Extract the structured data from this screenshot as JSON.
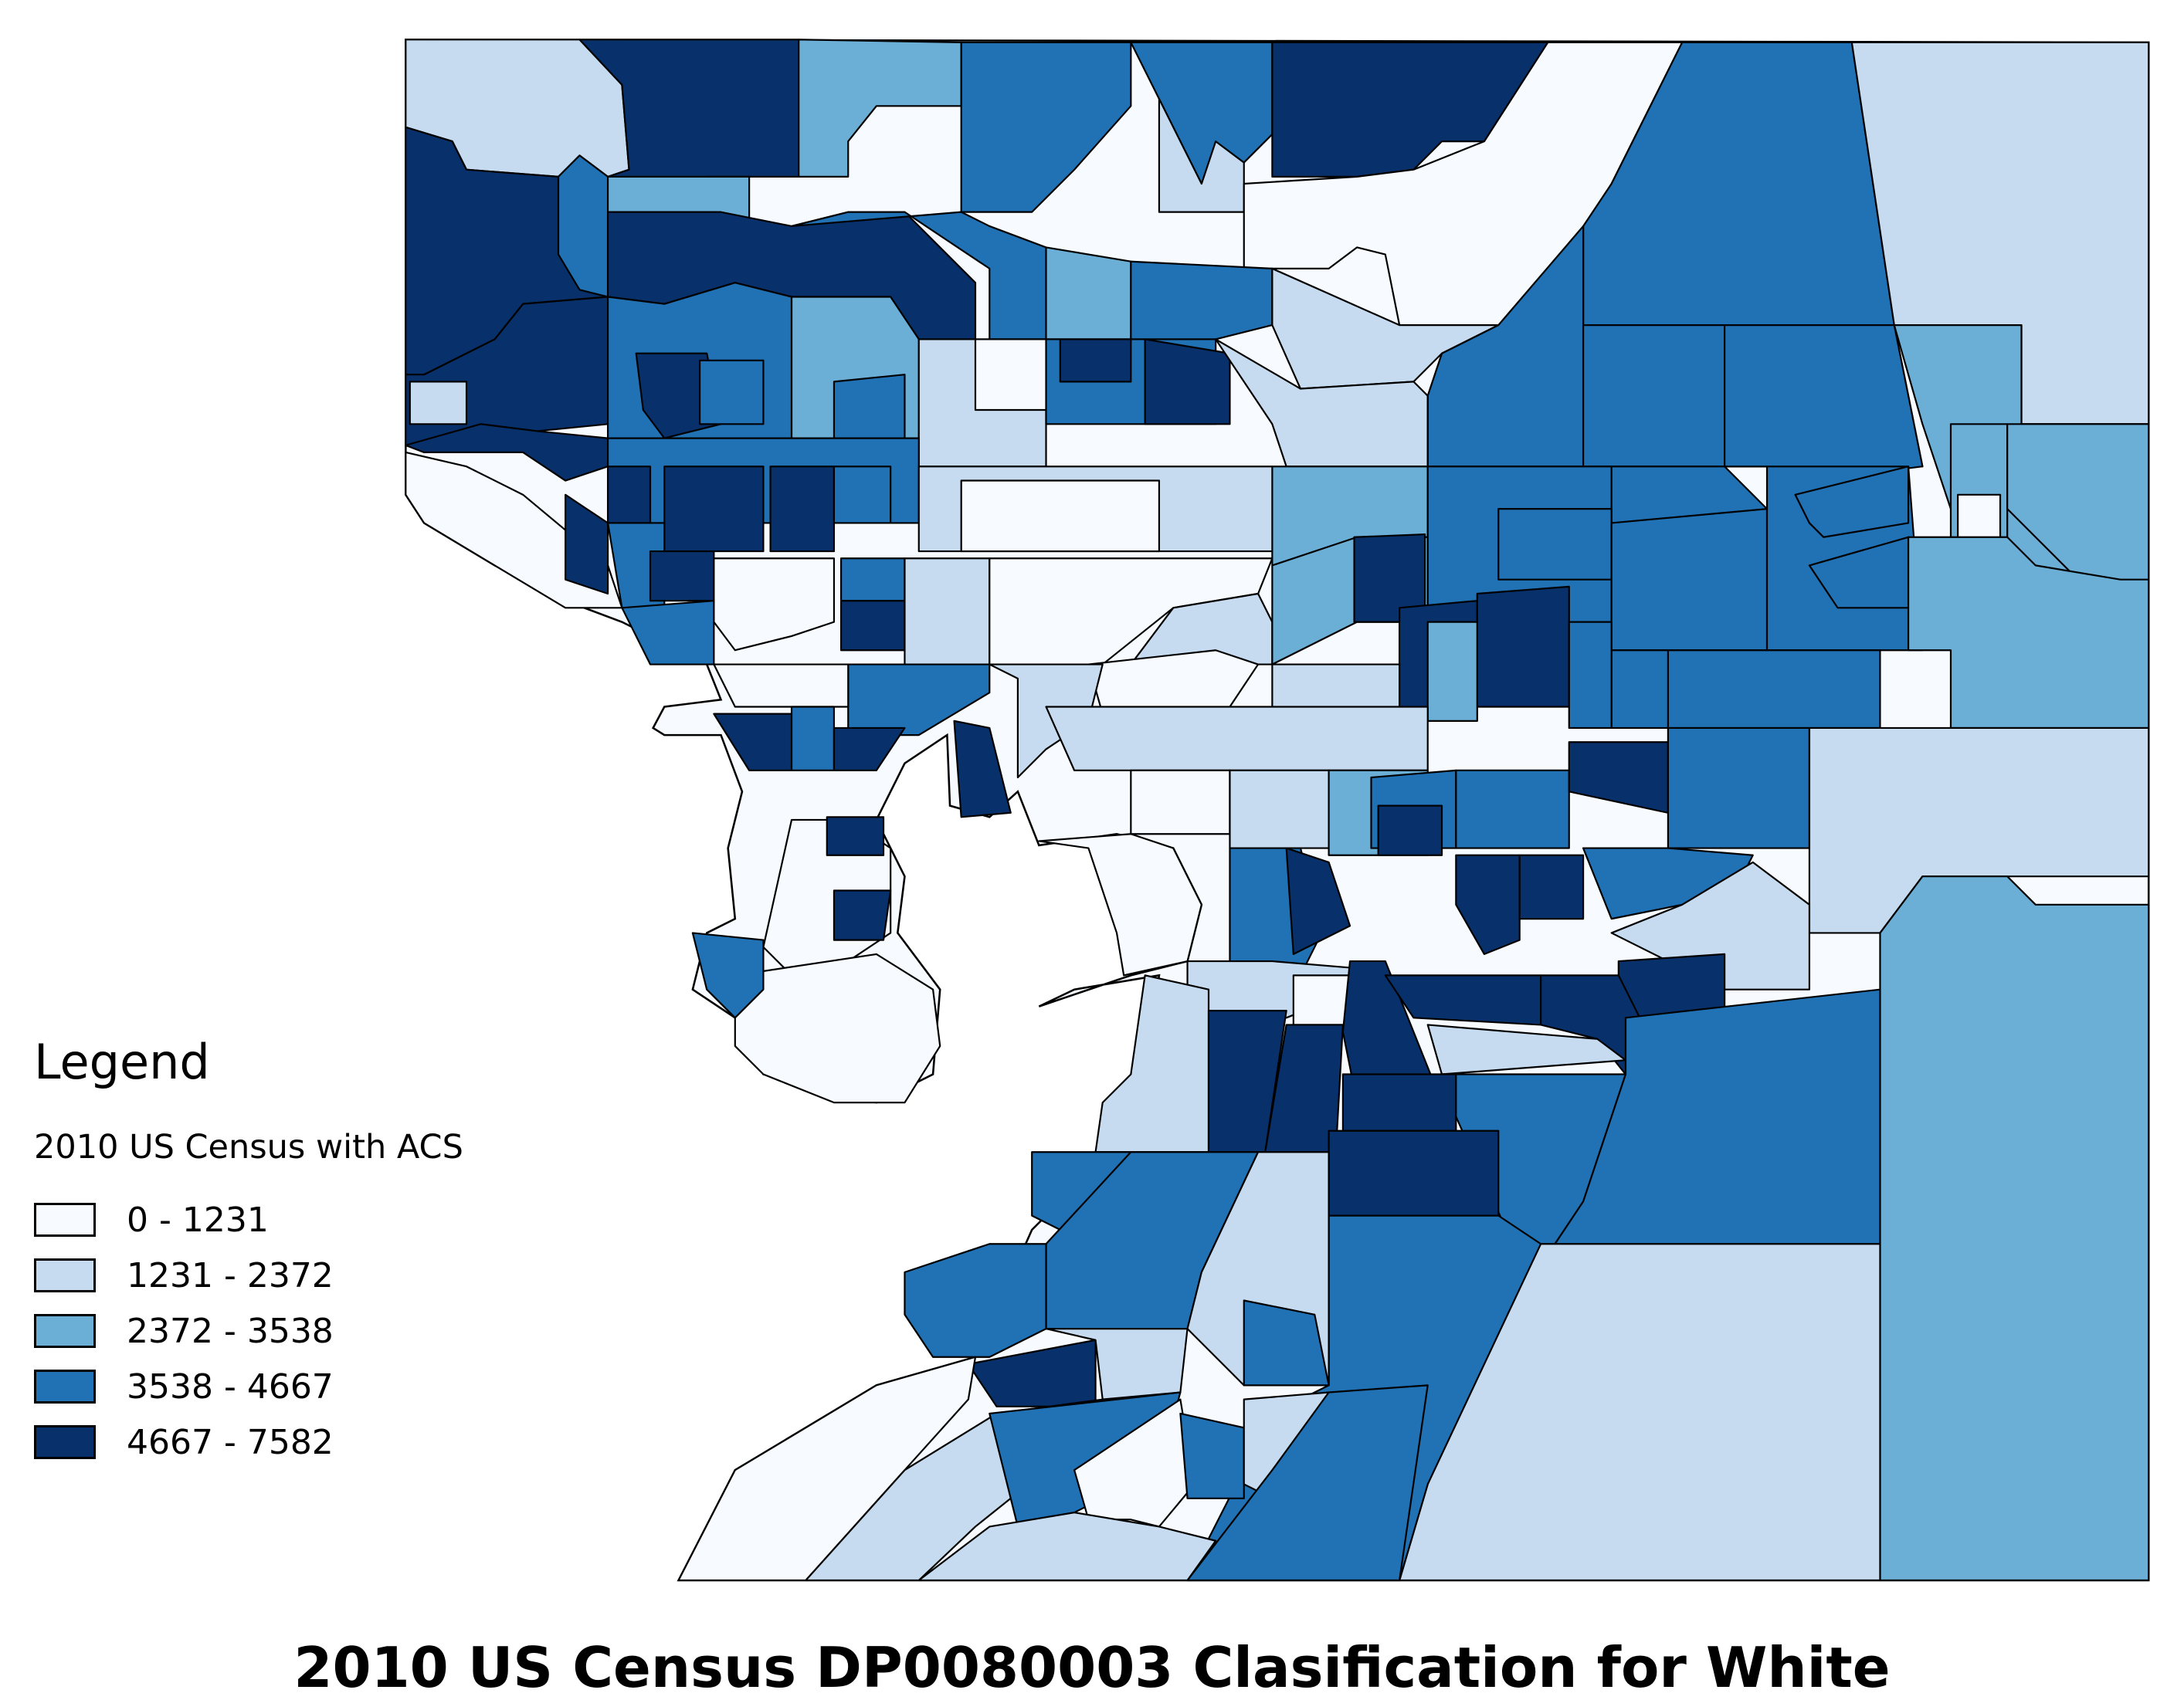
{
  "title": "2010 US Census DP0080003 Clasification for White",
  "legend": {
    "heading": "Legend",
    "layer_name": "2010 US Census with ACS",
    "classes": [
      {
        "label": "0 - 1231",
        "color": "#f7fbff"
      },
      {
        "label": "1231 - 2372",
        "color": "#c6dbef"
      },
      {
        "label": "2372 - 3538",
        "color": "#6baed6"
      },
      {
        "label": "3538 - 4667",
        "color": "#2171b5"
      },
      {
        "label": "4667 - 7582",
        "color": "#08306b"
      }
    ]
  },
  "chart_data": {
    "type": "choropleth",
    "title": "2010 US Census DP0080003 Clasification for White",
    "legend_title": "2010 US Census with ACS",
    "classes": [
      {
        "min": 0,
        "max": 1231,
        "color": "#f7fbff"
      },
      {
        "min": 1231,
        "max": 2372,
        "color": "#c6dbef"
      },
      {
        "min": 2372,
        "max": 3538,
        "color": "#6baed6"
      },
      {
        "min": 3538,
        "max": 4667,
        "color": "#2171b5"
      },
      {
        "min": 4667,
        "max": 7582,
        "color": "#08306b"
      }
    ]
  },
  "regions": [
    {
      "c": 1,
      "p": "287,28 410,28 440,60 445,120 430,125 410,110 395,125 330,120 320,100 287,90"
    },
    {
      "c": 4,
      "p": "410,28 565,28 565,125 500,125 500,150 440,150 430,125 445,120 440,60"
    },
    {
      "c": 2,
      "p": "565,28 680,30 680,75 620,75 600,100 600,125 565,125"
    },
    {
      "c": 3,
      "p": "680,30 800,30 800,75 760,120 730,150 680,150 680,75"
    },
    {
      "c": 3,
      "p": "800,30 900,30 900,95 880,115 850,130 820,70"
    },
    {
      "c": 1,
      "p": "820,70 850,130 860,100 880,115 880,150 820,150"
    },
    {
      "c": 4,
      "p": "900,30 1095,30 1050,100 1020,100 1000,120 960,125 900,125"
    },
    {
      "c": 0,
      "p": "1095,30 1190,30 1140,130 1100,200 1060,230 990,230 980,180 960,175 940,190 880,190 880,130 960,125 1000,120 1050,100"
    },
    {
      "c": 3,
      "p": "1190,30 1310,30 1340,230 1120,230 1120,160 1140,130"
    },
    {
      "c": 1,
      "p": "1310,30 1520,30 1520,300 1430,300 1430,230 1340,230"
    },
    {
      "c": 4,
      "p": "287,90 320,100 330,120 395,125 410,150 430,160 430,210 370,215 350,240 300,265 287,265"
    },
    {
      "c": 3,
      "p": "395,125 410,110 430,125 430,210 410,205 395,180"
    },
    {
      "c": 2,
      "p": "430,125 530,125 530,190 470,215 430,210"
    },
    {
      "c": 4,
      "p": "430,150 510,150 560,160 600,150 640,150 690,200 690,240 650,240 630,210 560,210 520,200 470,215 430,210"
    },
    {
      "c": 3,
      "p": "560,160 600,150 640,150 700,190 700,240 740,240 740,175 700,160 680,150"
    },
    {
      "c": 2,
      "p": "740,175 800,185 800,240 740,240"
    },
    {
      "c": 3,
      "p": "800,185 900,190 900,230 860,240 800,240"
    },
    {
      "c": 1,
      "p": "900,190 990,230 1060,230 1020,250 1000,270 920,275 900,230"
    },
    {
      "c": 3,
      "p": "1060,230 1120,160 1120,330 1010,330 1010,280 1020,250"
    },
    {
      "c": 4,
      "p": "287,265 300,265 350,240 370,215 430,210 430,300 380,305 340,300 300,320 287,315"
    },
    {
      "c": 3,
      "p": "430,210 470,215 520,200 560,210 560,310 430,310"
    },
    {
      "c": 4,
      "p": "450,250 500,250 510,300 470,310 455,290"
    },
    {
      "c": 3,
      "p": "495,255 540,255 540,300 495,300"
    },
    {
      "c": 2,
      "p": "560,210 630,210 650,240 650,310 560,310"
    },
    {
      "c": 3,
      "p": "590,270 640,265 640,310 590,310"
    },
    {
      "c": 1,
      "p": "650,240 740,240 740,330 650,330"
    },
    {
      "c": 0,
      "p": "690,240 750,240 750,290 690,290"
    },
    {
      "c": 3,
      "p": "740,240 860,240 860,300 740,300"
    },
    {
      "c": 4,
      "p": "750,240 800,240 800,270 750,270"
    },
    {
      "c": 4,
      "p": "810,240 870,250 870,300 810,300"
    },
    {
      "c": 1,
      "p": "860,240 920,275 1000,270 1010,280 1010,330 910,330 900,300"
    },
    {
      "c": 2,
      "p": "1010,280 1010,400 900,400 900,330 1010,330"
    },
    {
      "c": 3,
      "p": "1120,230 1340,230 1360,330 1120,330"
    },
    {
      "c": 3,
      "p": "1120,330 1220,330 1250,360 1250,460 1140,460 1140,370"
    },
    {
      "c": 3,
      "p": "1220,230 1340,230 1360,330 1280,340 1250,330 1220,330"
    },
    {
      "c": 2,
      "p": "1340,230 1430,230 1430,300 1520,300 1520,460 1420,460 1380,360 1360,300"
    },
    {
      "c": 2,
      "p": "1380,300 1420,300 1420,460 1380,460"
    },
    {
      "c": 2,
      "p": "1420,300 1520,300 1520,420 1480,420 1440,380 1420,360"
    },
    {
      "c": 4,
      "p": "287,315 340,300 380,305 430,310 430,330 400,340 370,320 340,320 300,320"
    },
    {
      "c": 0,
      "p": "287,320 330,330 370,350 430,400 440,430 400,430 350,400 300,370 287,350"
    },
    {
      "c": 1,
      "p": "290,270 330,270 330,300 290,300"
    },
    {
      "c": 3,
      "p": "430,310 650,310 650,370 430,370"
    },
    {
      "c": 4,
      "p": "430,330 460,330 460,370 430,370"
    },
    {
      "c": 4,
      "p": "470,330 540,330 540,390 470,390"
    },
    {
      "c": 4,
      "p": "545,330 590,330 590,390 545,390"
    },
    {
      "c": 3,
      "p": "590,330 630,330 630,370 590,370"
    },
    {
      "c": 1,
      "p": "650,330 900,330 900,390 650,390"
    },
    {
      "c": 0,
      "p": "680,340 820,340 820,390 680,390"
    },
    {
      "c": 4,
      "p": "400,350 430,370 430,420 400,410"
    },
    {
      "c": 3,
      "p": "430,370 470,370 470,430 440,430"
    },
    {
      "c": 4,
      "p": "460,390 505,390 505,425 460,425"
    },
    {
      "c": 0,
      "p": "505,395 590,395 590,440 560,450 520,460 505,440"
    },
    {
      "c": 3,
      "p": "440,430 505,425 505,470 460,470"
    },
    {
      "c": 4,
      "p": "595,425 640,425 640,460 595,460"
    },
    {
      "c": 3,
      "p": "595,395 640,395 640,425 595,425"
    },
    {
      "c": 1,
      "p": "640,395 700,395 700,470 640,470"
    },
    {
      "c": 0,
      "p": "700,395 900,395 890,420 830,430 780,470 700,470"
    },
    {
      "c": 1,
      "p": "830,430 890,420 900,440 900,470 800,470"
    },
    {
      "c": 2,
      "p": "900,400 960,380 1010,380 1010,440 960,440 900,470"
    },
    {
      "c": 4,
      "p": "958,380 1008,378 1008,440 958,440"
    },
    {
      "c": 3,
      "p": "1010,330 1140,330 1140,460 1040,460 1010,440"
    },
    {
      "c": 3,
      "p": "1060,360 1140,360 1140,410 1060,410"
    },
    {
      "c": 3,
      "p": "1140,370 1250,360 1250,460 1140,460"
    },
    {
      "c": 3,
      "p": "1250,330 1350,330 1360,460 1250,460"
    },
    {
      "c": 3,
      "p": "1270,350 1350,330 1350,370 1290,380 1280,370"
    },
    {
      "c": 3,
      "p": "1280,400 1350,380 1350,430 1300,430"
    },
    {
      "c": 0,
      "p": "1385,350 1415,350 1415,395 1385,395"
    },
    {
      "c": 2,
      "p": "1350,380 1420,380 1440,400 1500,410 1520,410 1520,515 1380,515 1380,460 1350,460"
    },
    {
      "c": 3,
      "p": "1180,460 1330,460 1330,515 1180,515"
    },
    {
      "c": 3,
      "p": "1140,460 1180,460 1180,515 1140,515"
    },
    {
      "c": 4,
      "p": "990,430 1045,425 1045,510 990,510"
    },
    {
      "c": 4,
      "p": "1045,420 1110,415 1110,500 1045,500"
    },
    {
      "c": 2,
      "p": "1010,440 1045,440 1045,510 1010,510"
    },
    {
      "c": 3,
      "p": "1110,440 1140,440 1140,515 1110,515"
    },
    {
      "c": 1,
      "p": "900,470 990,470 990,515 900,515"
    },
    {
      "c": 0,
      "p": "770,470 860,460 890,470 870,500 780,505"
    },
    {
      "c": 1,
      "p": "700,470 780,470 770,510 740,530 720,550 720,480"
    },
    {
      "c": 3,
      "p": "600,470 700,470 700,490 650,520 600,520"
    },
    {
      "c": 0,
      "p": "505,470 600,470 600,500 520,500"
    },
    {
      "c": 4,
      "p": "505,505 560,505 560,545 530,545"
    },
    {
      "c": 3,
      "p": "560,500 590,500 590,545 560,545"
    },
    {
      "c": 4,
      "p": "590,515 640,515 620,545 590,545"
    },
    {
      "c": 4,
      "p": "675,510 700,515 715,575 680,578"
    },
    {
      "c": 1,
      "p": "740,500 1010,500 1010,545 760,545"
    },
    {
      "c": 0,
      "p": "800,545 870,545 870,590 800,590"
    },
    {
      "c": 1,
      "p": "870,545 940,545 940,600 870,600"
    },
    {
      "c": 2,
      "p": "940,545 1010,545 1010,605 940,605"
    },
    {
      "c": 3,
      "p": "970,550 1030,545 1030,600 970,600"
    },
    {
      "c": 3,
      "p": "1030,545 1110,545 1110,600 1030,600"
    },
    {
      "c": 4,
      "p": "1110,525 1180,525 1180,575 1110,560"
    },
    {
      "c": 3,
      "p": "1180,515 1280,515 1280,600 1180,600"
    },
    {
      "c": 1,
      "p": "1280,515 1520,515 1520,620 1360,620 1330,660 1280,660"
    },
    {
      "c": 2,
      "p": "1330,660 1360,620 1420,620 1440,640 1520,640 1520,1118 1330,1118"
    },
    {
      "c": 4,
      "p": "975,570 1020,570 1020,605 975,605"
    },
    {
      "c": 4,
      "p": "1030,605 1075,605 1075,665 1050,675 1030,640"
    },
    {
      "c": 4,
      "p": "1075,605 1120,605 1120,650 1075,650"
    },
    {
      "c": 3,
      "p": "1120,600 1180,600 1240,605 1230,625 1190,640 1140,650"
    },
    {
      "c": 1,
      "p": "1240,610 1280,640 1280,700 1220,700 1180,680 1140,660 1190,640"
    },
    {
      "c": 3,
      "p": "870,600 920,600 935,660 920,690 870,690"
    },
    {
      "c": 4,
      "p": "910,600 940,610 955,655 915,675"
    },
    {
      "c": 0,
      "p": "735,595 800,590 830,600 850,640 840,680 795,690 790,660 770,600"
    },
    {
      "c": 0,
      "p": "560,580 600,580 630,600 630,660 600,680 560,690 540,670"
    },
    {
      "c": 4,
      "p": "585,578 625,578 625,605 585,605"
    },
    {
      "c": 4,
      "p": "590,630 630,630 625,665 590,665"
    },
    {
      "c": 0,
      "p": "520,690 620,675 660,700 665,740 640,780 590,780 540,760 520,740"
    },
    {
      "c": 3,
      "p": "490,660 540,665 540,700 520,720 500,700"
    },
    {
      "c": 1,
      "p": "840,680 900,680 960,685 960,700 910,720 860,720 840,700"
    },
    {
      "c": 0,
      "p": "915,690 955,690 955,725 915,725"
    },
    {
      "c": 4,
      "p": "955,680 980,680 1020,780 960,780 950,730"
    },
    {
      "c": 4,
      "p": "980,690 1090,690 1090,725 1000,720"
    },
    {
      "c": 4,
      "p": "1145,680 1220,675 1220,720 1145,720"
    },
    {
      "c": 4,
      "p": "1090,690 1145,690 1160,720 1220,720 1220,760 1150,760 1130,735 1090,725"
    },
    {
      "c": 1,
      "p": "1010,725 1130,735 1150,750 1020,760"
    },
    {
      "c": 3,
      "p": "1020,760 1150,760 1120,850 1100,880 1070,880 1030,790"
    },
    {
      "c": 3,
      "p": "1150,720 1330,700 1330,880 1100,880 1120,850 1150,760"
    },
    {
      "c": 1,
      "p": "810,690 855,700 855,815 775,815 780,780 800,760"
    },
    {
      "c": 4,
      "p": "855,715 910,715 895,815 855,815"
    },
    {
      "c": 4,
      "p": "910,725 950,725 945,815 895,815"
    },
    {
      "c": 4,
      "p": "950,760 1030,760 1030,800 950,800"
    },
    {
      "c": 4,
      "p": "940,800 1060,800 1060,860 940,860"
    },
    {
      "c": 1,
      "p": "1070,880 1330,880 1330,1118 990,1118 1010,1050"
    },
    {
      "c": 3,
      "p": "940,860 1060,860 1090,880 1010,1050 990,1118 840,1118 900,1000 940,980"
    },
    {
      "c": 3,
      "p": "730,815 800,815 800,860 770,880 730,860"
    },
    {
      "c": 3,
      "p": "800,815 890,815 850,900 840,940 740,940 740,880"
    },
    {
      "c": 1,
      "p": "890,815 940,815 940,980 880,980 840,940 850,900"
    },
    {
      "c": 3,
      "p": "640,900 700,880 740,880 740,940 700,960 660,960 640,930"
    },
    {
      "c": 4,
      "p": "685,965 775,948 775,995 705,995"
    },
    {
      "c": 1,
      "p": "740,940 840,940 835,985 780,990 775,948"
    },
    {
      "c": 3,
      "p": "880,920 930,930 940,980 880,980"
    },
    {
      "c": 0,
      "p": "480,1118 520,1040 620,980 690,960 685,990 640,1040 570,1118"
    },
    {
      "c": 1,
      "p": "570,1118 640,1040 705,1000 780,990 740,1040 690,1080 650,1118"
    },
    {
      "c": 3,
      "p": "700,1000 835,985 820,1040 760,1070 720,1080"
    },
    {
      "c": 0,
      "p": "760,1040 835,990 845,1050 820,1080 800,1075 770,1075"
    },
    {
      "c": 3,
      "p": "835,1000 880,1010 880,1060 840,1060"
    },
    {
      "c": 1,
      "p": "650,1118 700,1080 760,1070 820,1080 860,1090 840,1118"
    },
    {
      "c": 1,
      "p": "880,990 940,985 900,1060 880,1050"
    },
    {
      "c": 3,
      "p": "840,1118 900,1040 940,985 1010,980 990,1118"
    }
  ]
}
